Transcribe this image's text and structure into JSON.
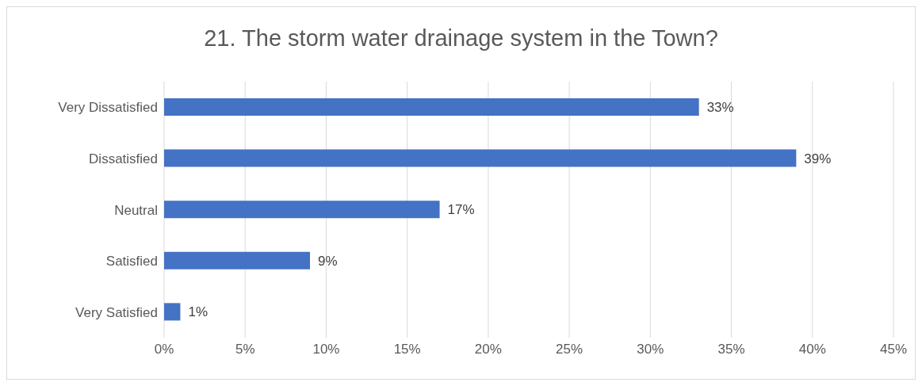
{
  "chart_data": {
    "type": "bar",
    "orientation": "horizontal",
    "title": "21. The storm water drainage system in the Town?",
    "categories": [
      "Very Dissatisfied",
      "Dissatisfied",
      "Neutral",
      "Satisfied",
      "Very Satisfied"
    ],
    "values": [
      33,
      39,
      17,
      9,
      1
    ],
    "value_labels": [
      "33%",
      "39%",
      "17%",
      "9%",
      "1%"
    ],
    "color": "#4472c4",
    "xlim": [
      0,
      45
    ],
    "xticks": [
      {
        "value": 0,
        "label": "0%"
      },
      {
        "value": 5,
        "label": "5%"
      },
      {
        "value": 10,
        "label": "10%"
      },
      {
        "value": 15,
        "label": "15%"
      },
      {
        "value": 20,
        "label": "20%"
      },
      {
        "value": 25,
        "label": "25%"
      },
      {
        "value": 30,
        "label": "30%"
      },
      {
        "value": 35,
        "label": "35%"
      },
      {
        "value": 40,
        "label": "40%"
      },
      {
        "value": 45,
        "label": "45%"
      }
    ],
    "grid": "x"
  }
}
